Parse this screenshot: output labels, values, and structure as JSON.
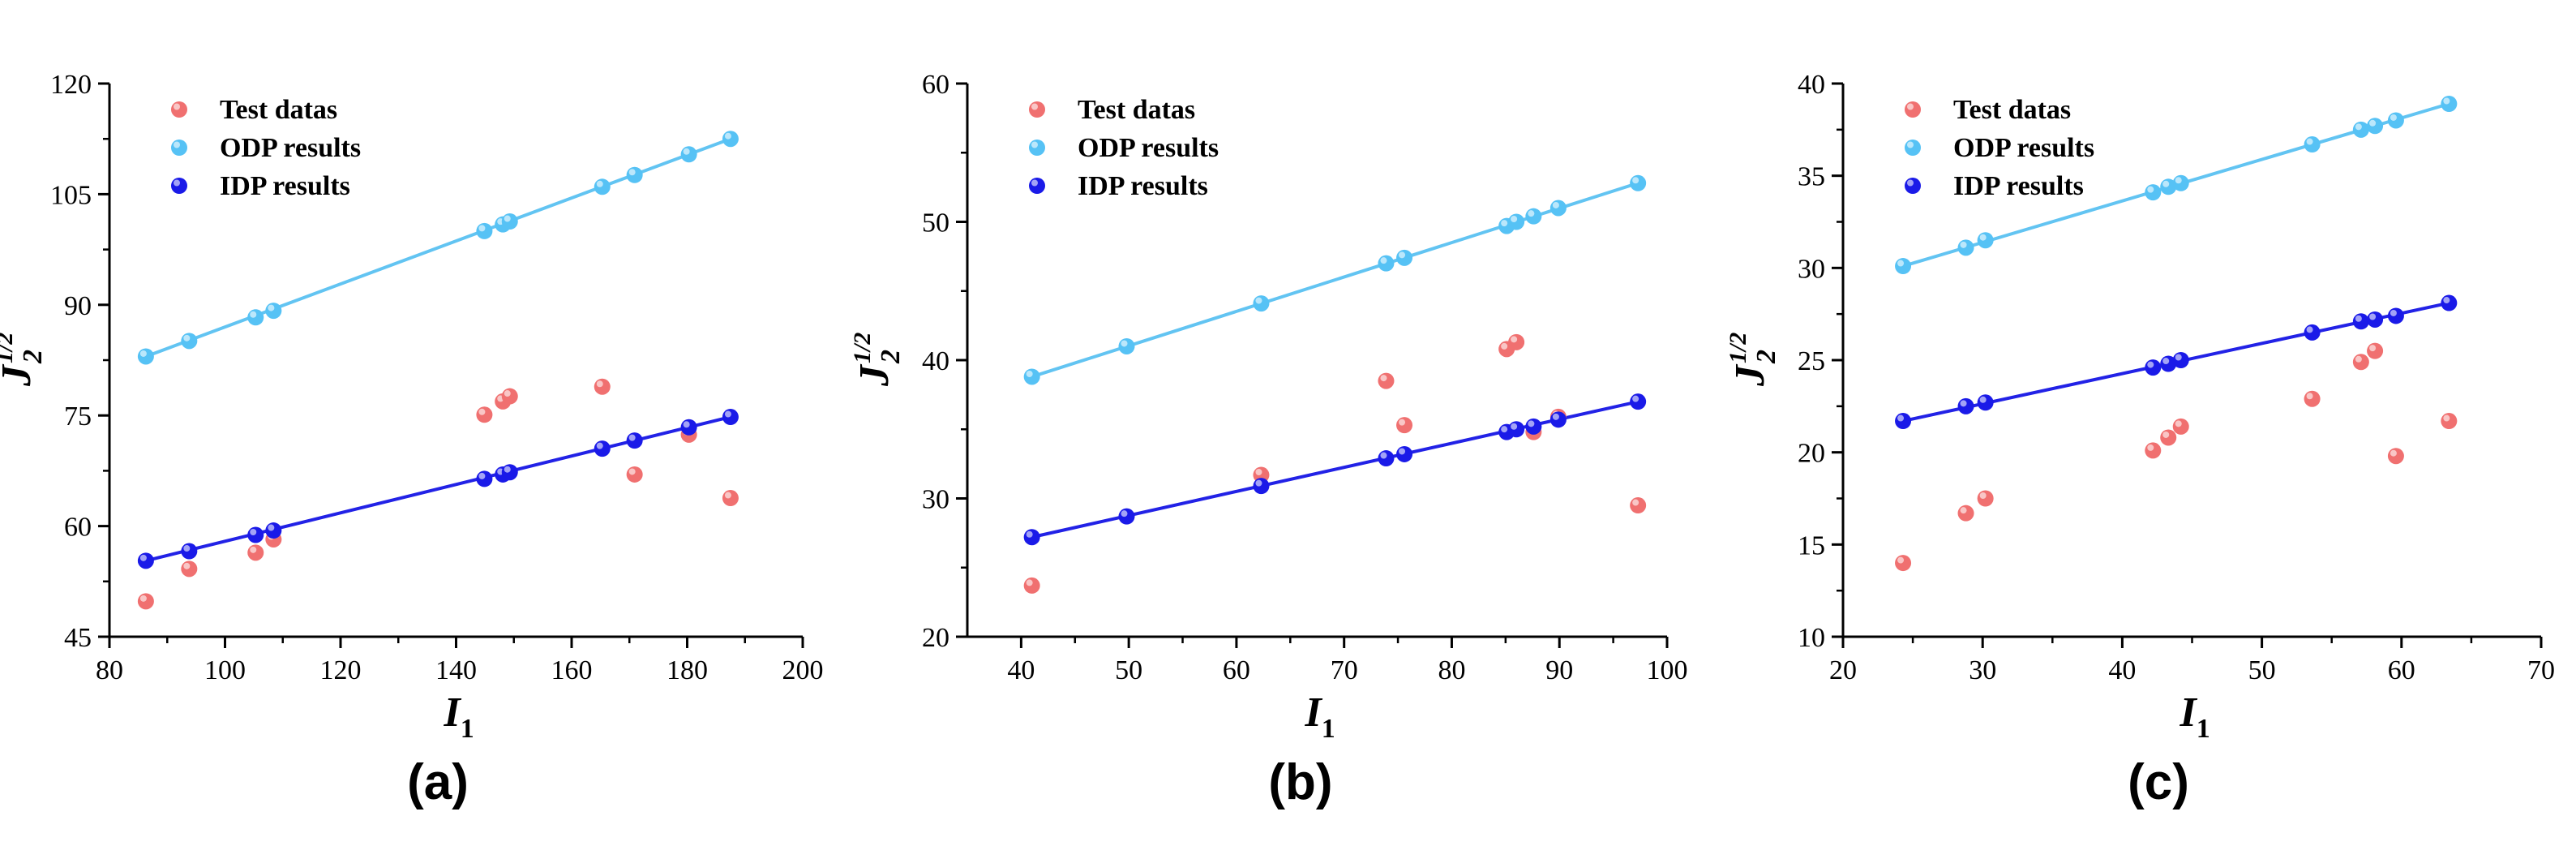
{
  "colors": {
    "test": "#f07070",
    "odp": "#56c2f5",
    "idp": "#1a1ae8",
    "odp_line": "#62c4f2",
    "idp_line": "#2222e6",
    "axis": "#000000"
  },
  "chart_data": [
    {
      "type": "scatter",
      "panel_label": "(a)",
      "xlabel": "I",
      "xlabel_sub": "1",
      "ylabel": "J",
      "ylabel_sub": "2",
      "ylabel_sup": "1/2",
      "xlim": [
        80,
        200
      ],
      "ylim": [
        45,
        120
      ],
      "xticks": [
        80,
        100,
        120,
        140,
        160,
        180,
        200
      ],
      "yticks": [
        45,
        60,
        75,
        90,
        105,
        120
      ],
      "legend": {
        "position": "top-left",
        "entries": [
          "Test datas",
          "ODP results",
          "IDP results"
        ]
      },
      "series": [
        {
          "name": "Test datas",
          "kind": "test",
          "x": [
            86.3,
            93.8,
            105.3,
            108.4,
            144.9,
            148.1,
            149.3,
            165.3,
            170.9,
            180.3,
            187.5
          ],
          "y": [
            49.8,
            54.2,
            56.4,
            58.2,
            75.1,
            76.9,
            77.6,
            78.9,
            67.0,
            72.4,
            63.8
          ]
        },
        {
          "name": "ODP results",
          "kind": "odp",
          "x": [
            86.3,
            93.8,
            105.3,
            108.4,
            144.9,
            148.1,
            149.3,
            165.3,
            170.9,
            180.3,
            187.5
          ],
          "y": [
            83.0,
            85.1,
            88.3,
            89.2,
            100.0,
            100.9,
            101.3,
            106.0,
            107.6,
            110.4,
            112.5
          ]
        },
        {
          "name": "IDP results",
          "kind": "idp",
          "x": [
            86.3,
            93.8,
            105.3,
            108.4,
            144.9,
            148.1,
            149.3,
            165.3,
            170.9,
            180.3,
            187.5
          ],
          "y": [
            55.3,
            56.6,
            58.8,
            59.4,
            66.4,
            67.0,
            67.3,
            70.5,
            71.6,
            73.4,
            74.8
          ]
        }
      ],
      "fits": [
        {
          "series": "ODP results",
          "x": [
            86.3,
            187.5
          ],
          "y": [
            83.0,
            112.5
          ]
        },
        {
          "series": "IDP results",
          "x": [
            86.3,
            187.5
          ],
          "y": [
            55.3,
            74.8
          ]
        }
      ]
    },
    {
      "type": "scatter",
      "panel_label": "(b)",
      "xlabel": "I",
      "xlabel_sub": "1",
      "ylabel": "J",
      "ylabel_sub": "2",
      "ylabel_sup": "1/2",
      "xlim": [
        35,
        100
      ],
      "ylim": [
        20,
        60
      ],
      "xticks": [
        40,
        50,
        60,
        70,
        80,
        90,
        100
      ],
      "yticks": [
        20,
        30,
        40,
        50,
        60
      ],
      "legend": {
        "position": "top-left",
        "entries": [
          "Test datas",
          "ODP results",
          "IDP results"
        ]
      },
      "series": [
        {
          "name": "Test datas",
          "kind": "test",
          "x": [
            41.0,
            62.3,
            73.9,
            75.6,
            85.1,
            86.0,
            87.6,
            89.9,
            97.3
          ],
          "y": [
            23.7,
            31.7,
            38.5,
            35.3,
            40.8,
            41.3,
            34.8,
            35.9,
            29.5
          ]
        },
        {
          "name": "ODP results",
          "kind": "odp",
          "x": [
            41.0,
            49.8,
            62.3,
            73.9,
            75.6,
            85.1,
            86.0,
            87.6,
            89.9,
            97.3
          ],
          "y": [
            38.8,
            41.0,
            44.1,
            47.0,
            47.4,
            49.7,
            50.0,
            50.4,
            51.0,
            52.8
          ]
        },
        {
          "name": "IDP results",
          "kind": "idp",
          "x": [
            41.0,
            49.8,
            62.3,
            73.9,
            75.6,
            85.1,
            86.0,
            87.6,
            89.9,
            97.3
          ],
          "y": [
            27.2,
            28.7,
            30.9,
            32.9,
            33.2,
            34.8,
            35.0,
            35.2,
            35.7,
            37.0
          ]
        }
      ],
      "fits": [
        {
          "series": "ODP results",
          "x": [
            41.0,
            97.3
          ],
          "y": [
            38.8,
            52.8
          ]
        },
        {
          "series": "IDP results",
          "x": [
            41.0,
            97.3
          ],
          "y": [
            27.2,
            37.0
          ]
        }
      ]
    },
    {
      "type": "scatter",
      "panel_label": "(c)",
      "xlabel": "I",
      "xlabel_sub": "1",
      "ylabel": "J",
      "ylabel_sub": "2",
      "ylabel_sup": "1/2",
      "xlim": [
        20,
        70
      ],
      "ylim": [
        10,
        40
      ],
      "xticks": [
        20,
        30,
        40,
        50,
        60,
        70
      ],
      "yticks": [
        10,
        15,
        20,
        25,
        30,
        35,
        40
      ],
      "legend": {
        "position": "top-left",
        "entries": [
          "Test datas",
          "ODP results",
          "IDP results"
        ]
      },
      "series": [
        {
          "name": "Test datas",
          "kind": "test",
          "x": [
            24.3,
            28.8,
            30.2,
            42.2,
            43.3,
            44.2,
            53.6,
            57.1,
            58.1,
            59.6,
            63.4
          ],
          "y": [
            14.0,
            16.7,
            17.5,
            20.1,
            20.8,
            21.4,
            22.9,
            24.9,
            25.5,
            19.8,
            21.7
          ]
        },
        {
          "name": "ODP results",
          "kind": "odp",
          "x": [
            24.3,
            28.8,
            30.2,
            42.2,
            43.3,
            44.2,
            53.6,
            57.1,
            58.1,
            59.6,
            63.4
          ],
          "y": [
            30.1,
            31.1,
            31.5,
            34.1,
            34.4,
            34.6,
            36.7,
            37.5,
            37.7,
            38.0,
            38.9
          ]
        },
        {
          "name": "IDP results",
          "kind": "idp",
          "x": [
            24.3,
            28.8,
            30.2,
            42.2,
            43.3,
            44.2,
            53.6,
            57.1,
            58.1,
            59.6,
            63.4
          ],
          "y": [
            21.7,
            22.5,
            22.7,
            24.6,
            24.8,
            25.0,
            26.5,
            27.1,
            27.2,
            27.4,
            28.1
          ]
        }
      ],
      "fits": [
        {
          "series": "ODP results",
          "x": [
            24.3,
            63.4
          ],
          "y": [
            30.1,
            38.9
          ]
        },
        {
          "series": "IDP results",
          "x": [
            24.3,
            63.4
          ],
          "y": [
            21.7,
            28.1
          ]
        }
      ]
    }
  ]
}
